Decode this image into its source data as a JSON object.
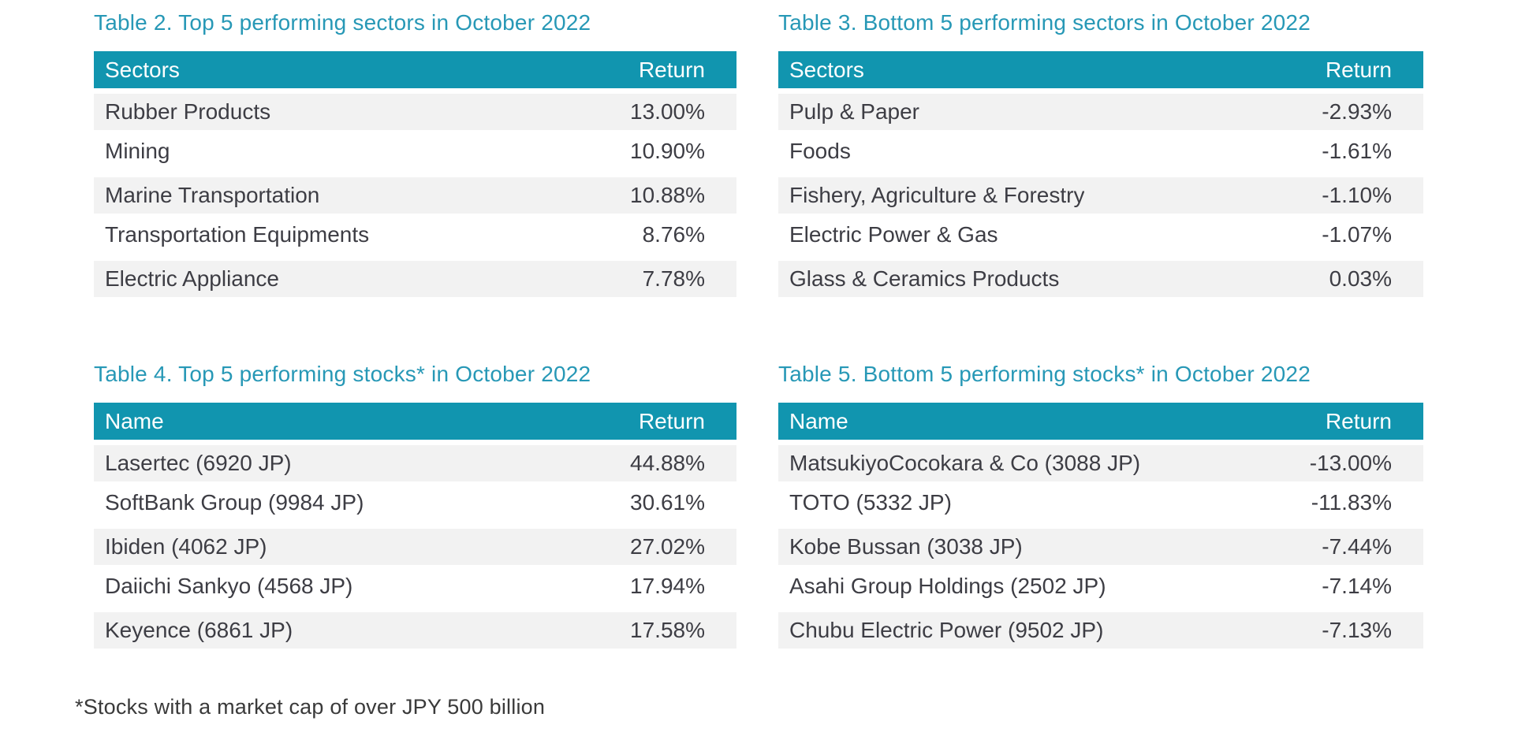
{
  "colors": {
    "header_bg": "#1195AF",
    "title_text": "#2798B6",
    "alt_row_bg": "#F2F2F2",
    "row_text": "#3D3D44"
  },
  "tables": [
    {
      "title": "Table 2. Top 5 performing sectors in October 2022",
      "columns": [
        "Sectors",
        "Return"
      ],
      "rows": [
        [
          "Rubber Products",
          "13.00%"
        ],
        [
          "Mining",
          "10.90%"
        ],
        [
          "Marine Transportation",
          "10.88%"
        ],
        [
          "Transportation Equipments",
          "8.76%"
        ],
        [
          "Electric Appliance",
          "7.78%"
        ]
      ]
    },
    {
      "title": "Table 3. Bottom 5 performing sectors in October 2022",
      "columns": [
        "Sectors",
        "Return"
      ],
      "rows": [
        [
          "Pulp & Paper",
          "-2.93%"
        ],
        [
          "Foods",
          "-1.61%"
        ],
        [
          "Fishery, Agriculture & Forestry",
          "-1.10%"
        ],
        [
          "Electric Power & Gas",
          "-1.07%"
        ],
        [
          "Glass & Ceramics Products",
          "0.03%"
        ]
      ]
    },
    {
      "title": "Table 4. Top 5 performing stocks* in October 2022",
      "columns": [
        "Name",
        "Return"
      ],
      "rows": [
        [
          "Lasertec (6920 JP)",
          "44.88%"
        ],
        [
          "SoftBank Group (9984 JP)",
          "30.61%"
        ],
        [
          "Ibiden (4062 JP)",
          "27.02%"
        ],
        [
          "Daiichi Sankyo (4568 JP)",
          "17.94%"
        ],
        [
          "Keyence (6861 JP)",
          "17.58%"
        ]
      ]
    },
    {
      "title": "Table 5. Bottom 5 performing stocks* in October 2022",
      "columns": [
        "Name",
        "Return"
      ],
      "rows": [
        [
          "MatsukiyoCocokara & Co (3088 JP)",
          "-13.00%"
        ],
        [
          "TOTO (5332 JP)",
          "-11.83%"
        ],
        [
          "Kobe Bussan (3038 JP)",
          "-7.44%"
        ],
        [
          "Asahi Group Holdings (2502 JP)",
          "-7.14%"
        ],
        [
          "Chubu Electric Power (9502 JP)",
          "-7.13%"
        ]
      ]
    }
  ],
  "footnote": "*Stocks with a market cap of over JPY 500 billion"
}
